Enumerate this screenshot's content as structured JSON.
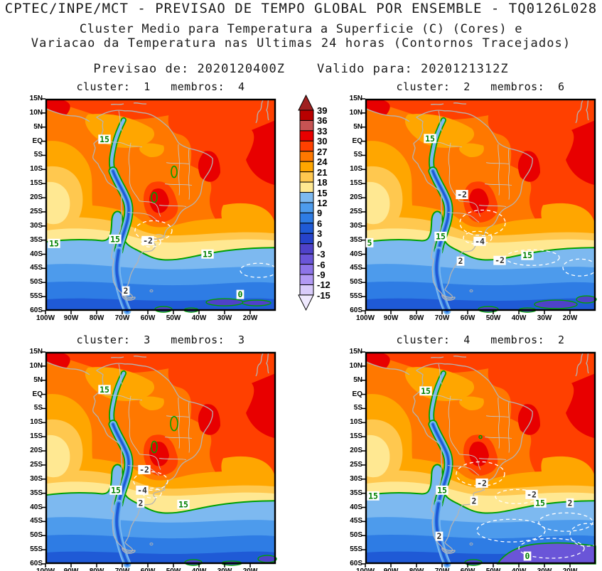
{
  "header": {
    "line1": "CPTEC/INPE/MCT - PREVISAO DE TEMPO GLOBAL POR ENSEMBLE - TQ0126L028",
    "line2": "Cluster Medio para Temperatura a Superficie (C) (Cores) e",
    "line3": "Variacao da Temperatura nas Ultimas 24 horas (Contornos Tracejados)",
    "line4": "Previsao de: 2020120400Z    Valido para: 2020121312Z"
  },
  "chart_data": {
    "type": "heatmap",
    "description": "Four-panel ensemble-cluster mean surface temperature (shaded, C) and 24-h temperature change (dashed contours) over South America, 15N-60S, 100W-10W",
    "shaded_units": "C",
    "contour_interval": 3,
    "x_ticks": [
      "100W",
      "90W",
      "80W",
      "70W",
      "60W",
      "50W",
      "40W",
      "30W",
      "20W"
    ],
    "y_ticks": [
      "15N",
      "10N",
      "5N",
      "EQ",
      "5S",
      "10S",
      "15S",
      "20S",
      "25S",
      "30S",
      "35S",
      "40S",
      "45S",
      "50S",
      "55S",
      "60S"
    ],
    "colorbar": {
      "levels": [
        39,
        36,
        33,
        30,
        27,
        24,
        21,
        18,
        15,
        12,
        9,
        6,
        3,
        0,
        -3,
        -6,
        -9,
        -12,
        -15
      ],
      "colors": [
        "#b80000",
        "#c65353",
        "#e80000",
        "#ff4000",
        "#ff7800",
        "#ffa600",
        "#ffc84f",
        "#ffe892",
        "#7db9f0",
        "#4d9bec",
        "#2e7ce4",
        "#1f5ad6",
        "#2643cb",
        "#4f42c9",
        "#6a55d8",
        "#8d74e8",
        "#b29af4",
        "#d9ccfb"
      ],
      "above_color": "#a02020",
      "below_color": "#efe9fe"
    },
    "panels": [
      {
        "title": "cluster:  1   membros:  4",
        "cluster": 1,
        "membros": 4,
        "contour_labels": [
          {
            "text": "15",
            "color": "green",
            "x": 83,
            "y": 57
          },
          {
            "text": "15",
            "color": "green",
            "x": 12,
            "y": 204
          },
          {
            "text": "15",
            "color": "green",
            "x": 98,
            "y": 198
          },
          {
            "text": "-2",
            "color": "dark",
            "x": 144,
            "y": 200
          },
          {
            "text": "15",
            "color": "green",
            "x": 228,
            "y": 219
          },
          {
            "text": "2",
            "color": "dark",
            "x": 113,
            "y": 271
          },
          {
            "text": "0",
            "color": "green",
            "x": 274,
            "y": 276
          }
        ]
      },
      {
        "title": "cluster:  2   membros:  6",
        "cluster": 2,
        "membros": 6,
        "contour_labels": [
          {
            "text": "15",
            "color": "green",
            "x": 91,
            "y": 56
          },
          {
            "text": "-2",
            "color": "dark",
            "x": 136,
            "y": 135
          },
          {
            "text": "5",
            "color": "green",
            "x": 6,
            "y": 203
          },
          {
            "text": "15",
            "color": "green",
            "x": 106,
            "y": 194
          },
          {
            "text": "-4",
            "color": "dark",
            "x": 161,
            "y": 201
          },
          {
            "text": "2",
            "color": "dark",
            "x": 134,
            "y": 229
          },
          {
            "text": "-2",
            "color": "dark",
            "x": 189,
            "y": 228
          },
          {
            "text": "15",
            "color": "green",
            "x": 228,
            "y": 221
          }
        ]
      },
      {
        "title": "cluster:  3   membros:  3",
        "cluster": 3,
        "membros": 3,
        "contour_labels": [
          {
            "text": "15",
            "color": "green",
            "x": 83,
            "y": 53
          },
          {
            "text": "-2",
            "color": "dark",
            "x": 139,
            "y": 166
          },
          {
            "text": "15",
            "color": "green",
            "x": 99,
            "y": 195
          },
          {
            "text": "-4",
            "color": "dark",
            "x": 136,
            "y": 195
          },
          {
            "text": "2",
            "color": "dark",
            "x": 134,
            "y": 213
          },
          {
            "text": "15",
            "color": "green",
            "x": 194,
            "y": 215
          }
        ]
      },
      {
        "title": "cluster:  4   membros:  2",
        "cluster": 4,
        "membros": 2,
        "contour_labels": [
          {
            "text": "15",
            "color": "green",
            "x": 85,
            "y": 55
          },
          {
            "text": "-2",
            "color": "dark",
            "x": 164,
            "y": 185
          },
          {
            "text": "15",
            "color": "green",
            "x": 11,
            "y": 203
          },
          {
            "text": "15",
            "color": "green",
            "x": 108,
            "y": 195
          },
          {
            "text": "2",
            "color": "dark",
            "x": 153,
            "y": 210
          },
          {
            "text": "-2",
            "color": "dark",
            "x": 234,
            "y": 201
          },
          {
            "text": "15",
            "color": "green",
            "x": 246,
            "y": 213
          },
          {
            "text": "2",
            "color": "dark",
            "x": 288,
            "y": 213
          },
          {
            "text": "2",
            "color": "dark",
            "x": 104,
            "y": 260
          },
          {
            "text": "0",
            "color": "green",
            "x": 228,
            "y": 288
          }
        ]
      }
    ]
  }
}
